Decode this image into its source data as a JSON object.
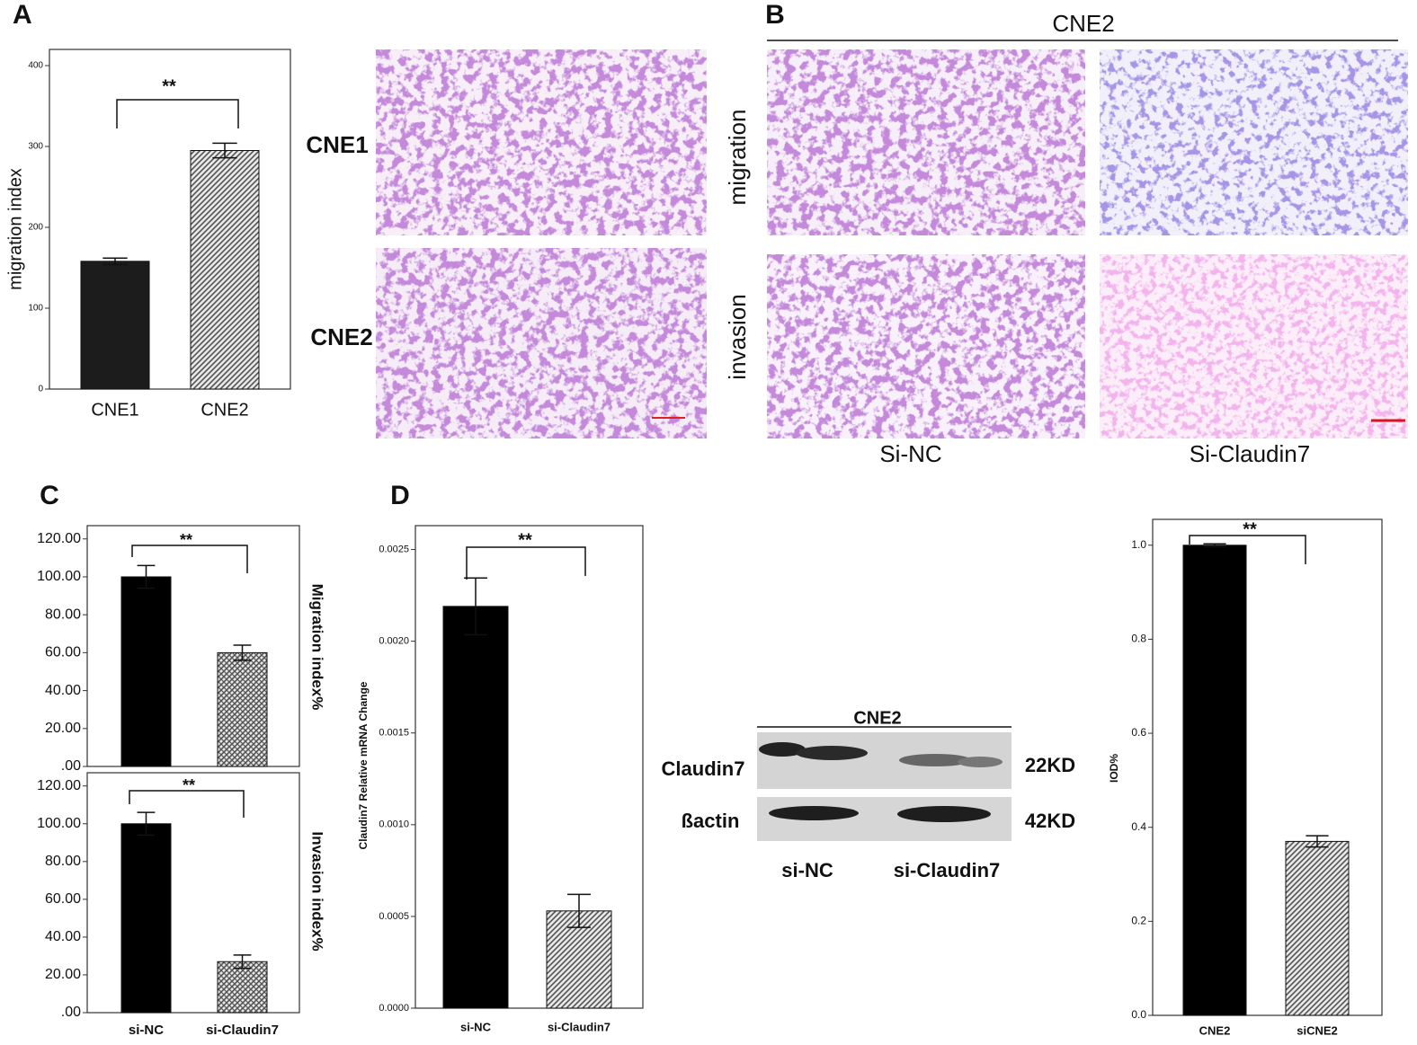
{
  "figure": {
    "panel_labels": [
      "A",
      "B",
      "C",
      "D"
    ],
    "panel_a": {
      "row_labels": [
        "CNE1",
        "CNE2"
      ]
    },
    "panel_b": {
      "title": "CNE2",
      "row_labels": [
        "migration",
        "invasion"
      ],
      "column_labels": [
        "Si-NC",
        "Si-Claudin7"
      ]
    },
    "western_blot": {
      "title": "CNE2",
      "row_labels": [
        "Claudin7",
        "ßactin"
      ],
      "sizes": [
        "22KD",
        "42KD"
      ],
      "lane_labels": [
        "si-NC",
        "si-Claudin7"
      ]
    }
  },
  "chart_data": [
    {
      "type": "bar",
      "ylabel": "migration index",
      "ylabel_position": "left",
      "categories": [
        "CNE1",
        "CNE2"
      ],
      "values": [
        158,
        295
      ],
      "errors": [
        4,
        9
      ],
      "colors": [
        "#1c1c1c",
        "#555555"
      ],
      "hatch": [
        "none",
        "diagonal"
      ],
      "ylim": [
        0,
        420
      ],
      "yticks": [
        0,
        100,
        200,
        300,
        400
      ],
      "annotation": "**"
    },
    {
      "type": "bar",
      "ylabel": "Migration index%",
      "ylabel_position": "right",
      "categories": [
        null,
        null
      ],
      "values": [
        100,
        60
      ],
      "errors": [
        6,
        4
      ],
      "colors": [
        "#000000",
        "#555555"
      ],
      "hatch": [
        "none",
        "crosshatch"
      ],
      "ylim": [
        0,
        127
      ],
      "yticks": [
        {
          "value": 0,
          "label": ".00"
        },
        {
          "value": 20,
          "label": "20.00"
        },
        {
          "value": 40,
          "label": "40.00"
        },
        {
          "value": 60,
          "label": "60.00"
        },
        {
          "value": 80,
          "label": "80.00"
        },
        {
          "value": 100,
          "label": "100.00"
        },
        {
          "value": 120,
          "label": "120.00"
        }
      ],
      "annotation": "**"
    },
    {
      "type": "bar",
      "ylabel": "Invasion index%",
      "ylabel_position": "right",
      "categories": [
        "si-NC",
        "si-Claudin7"
      ],
      "values": [
        100,
        27
      ],
      "errors": [
        6,
        3.5
      ],
      "colors": [
        "#000000",
        "#555555"
      ],
      "hatch": [
        "none",
        "crosshatch"
      ],
      "ylim": [
        0,
        127
      ],
      "yticks": [
        {
          "value": 0,
          "label": ".00"
        },
        {
          "value": 20,
          "label": "20.00"
        },
        {
          "value": 40,
          "label": "40.00"
        },
        {
          "value": 60,
          "label": "60.00"
        },
        {
          "value": 80,
          "label": "80.00"
        },
        {
          "value": 100,
          "label": "100.00"
        },
        {
          "value": 120,
          "label": "120.00"
        }
      ],
      "annotation": "**"
    },
    {
      "type": "bar",
      "ylabel": "Claudin7 Relative mRNA Change",
      "ylabel_position": "left",
      "categories": [
        "si-NC",
        "si-Claudin7"
      ],
      "values": [
        0.00219,
        0.00053
      ],
      "errors": [
        0.000155,
        9e-05
      ],
      "colors": [
        "#000000",
        "#555555"
      ],
      "hatch": [
        "none",
        "diagonal"
      ],
      "ylim": [
        0,
        0.00263
      ],
      "yticks": [
        {
          "value": 0,
          "label": "0.0000"
        },
        {
          "value": 0.0005,
          "label": "0.0005"
        },
        {
          "value": 0.001,
          "label": "0.0010"
        },
        {
          "value": 0.0015,
          "label": "0.0015"
        },
        {
          "value": 0.002,
          "label": "0.0020"
        },
        {
          "value": 0.0025,
          "label": "0.0025"
        }
      ],
      "annotation": "**"
    },
    {
      "type": "bar",
      "ylabel": "IOD%",
      "ylabel_position": "left",
      "categories": [
        "CNE2",
        "siCNE2"
      ],
      "values": [
        1.0,
        0.37
      ],
      "errors": [
        0.003,
        0.012
      ],
      "colors": [
        "#000000",
        "#555555"
      ],
      "hatch": [
        "none",
        "diagonal"
      ],
      "ylim": [
        0,
        1.055
      ],
      "yticks": [
        {
          "value": 0,
          "label": "0.0"
        },
        0.2,
        0.4,
        0.6,
        0.8,
        {
          "value": 1,
          "label": "1.0"
        }
      ],
      "annotation": "**"
    }
  ]
}
